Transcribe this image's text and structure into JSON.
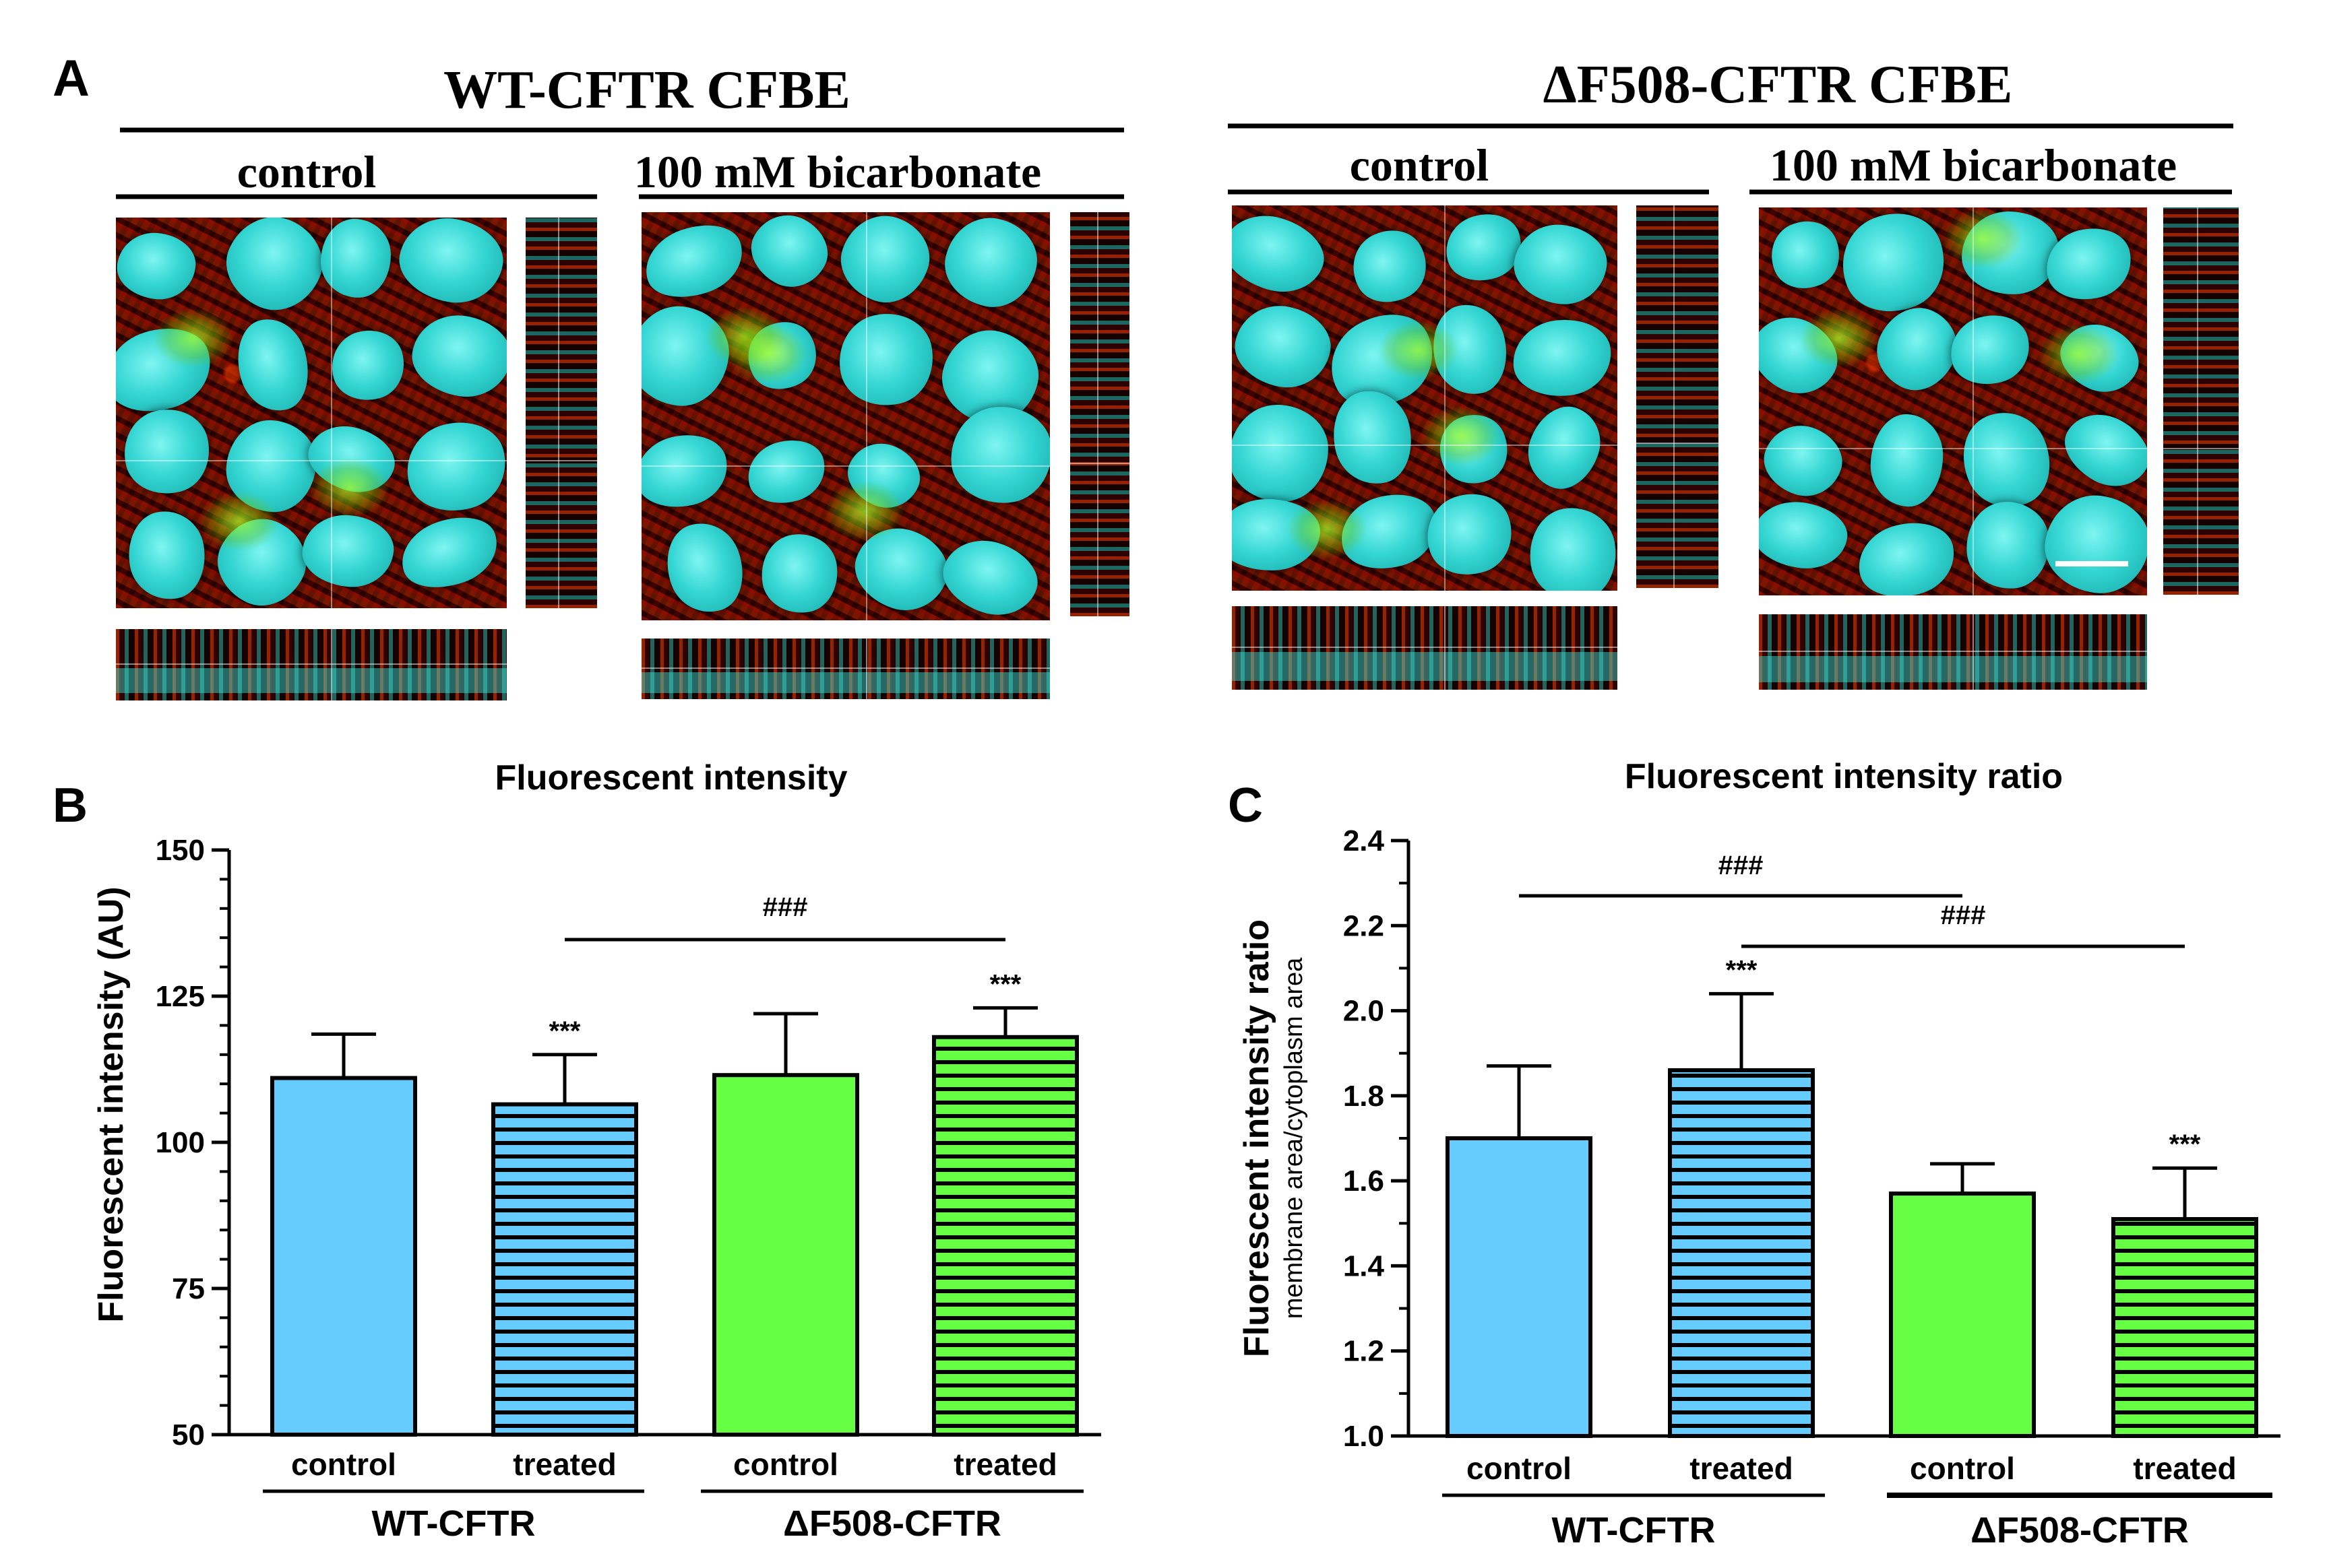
{
  "panel_a": {
    "letter": "A",
    "wt_title": "WT-CFTR CFBE",
    "df_title": "ΔF508-CFTR CFBE",
    "control_label": "control",
    "treated_label": "100 mM bicarbonate"
  },
  "chart_data": [
    {
      "panel": "B",
      "type": "bar",
      "title": "Fluorescent intensity",
      "ylabel": "Fluorescent intensity (AU)",
      "ylim": [
        50,
        150
      ],
      "yticks": [
        "50",
        "75",
        "100",
        "125",
        "150"
      ],
      "categories": [
        "control",
        "treated",
        "control",
        "treated"
      ],
      "groups": [
        "WT-CFTR",
        "ΔF508-CFTR"
      ],
      "values": [
        111,
        106.5,
        111.5,
        118
      ],
      "errors": [
        7.5,
        8.5,
        10.5,
        5
      ],
      "colors": [
        "#66ccff",
        "#66ccff",
        "#66ff44",
        "#66ff44"
      ],
      "hatched": [
        false,
        true,
        false,
        true
      ],
      "significance": [
        "",
        "***",
        "",
        "***"
      ],
      "brackets": [
        {
          "from": 1,
          "to": 3,
          "label": "###"
        }
      ],
      "grid": false
    },
    {
      "panel": "C",
      "type": "bar",
      "title": "Fluorescent intensity ratio",
      "ylabel": "Fluorescent intensity ratio",
      "ylabel_sub": "membrane area/cytoplasm area",
      "ylim": [
        1.0,
        2.4
      ],
      "yticks": [
        "1.0",
        "1.2",
        "1.4",
        "1.6",
        "1.8",
        "2.0",
        "2.2",
        "2.4"
      ],
      "categories": [
        "control",
        "treated",
        "control",
        "treated"
      ],
      "groups": [
        "WT-CFTR",
        "ΔF508-CFTR"
      ],
      "values": [
        1.7,
        1.86,
        1.57,
        1.51
      ],
      "errors": [
        0.17,
        0.18,
        0.07,
        0.12
      ],
      "colors": [
        "#66ccff",
        "#66ccff",
        "#66ff44",
        "#66ff44"
      ],
      "hatched": [
        false,
        true,
        false,
        true
      ],
      "significance": [
        "",
        "***",
        "",
        "***"
      ],
      "brackets": [
        {
          "from": 0,
          "to": 2,
          "label": "###"
        },
        {
          "from": 1,
          "to": 3,
          "label": "###"
        }
      ],
      "grid": false
    }
  ]
}
